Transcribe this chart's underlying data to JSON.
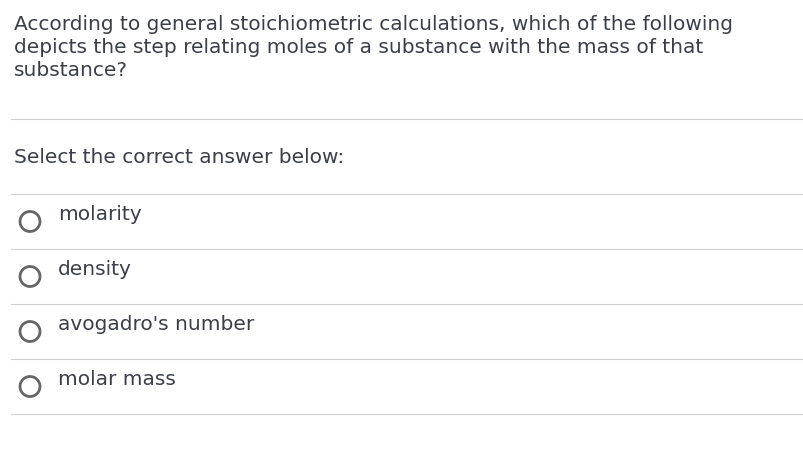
{
  "question_line1": "According to general stoichiometric calculations, which of the following",
  "question_line2": "depicts the step relating moles of a substance with the mass of that",
  "question_line3": "substance?",
  "instruction": "Select the correct answer below:",
  "options": [
    "molarity",
    "density",
    "avogadro's number",
    "molar mass"
  ],
  "background_color": "#ffffff",
  "text_color": "#3a3f4a",
  "line_color": "#d0d0d0",
  "circle_color": "#666666",
  "question_fontsize": 14.5,
  "instruction_fontsize": 14.5,
  "option_fontsize": 14.5,
  "fig_width": 8.04,
  "fig_height": 4.6,
  "dpi": 100
}
